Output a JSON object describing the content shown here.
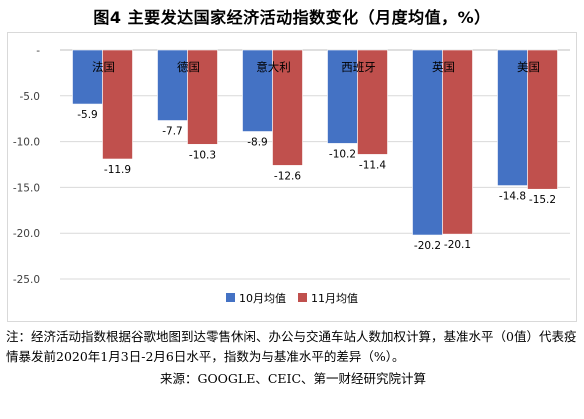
{
  "title": "图4 主要发达国家经济活动指数变化（月度均值，%）",
  "chart_data": {
    "type": "bar",
    "title": "图4 主要发达国家经济活动指数变化（月度均值，%）",
    "categories": [
      "法国",
      "德国",
      "意大利",
      "西班牙",
      "英国",
      "美国"
    ],
    "series": [
      {
        "name": "10月均值",
        "color": "#4472c4",
        "values": [
          -5.9,
          -7.7,
          -8.9,
          -10.2,
          -20.2,
          -14.8
        ]
      },
      {
        "name": "11月均值",
        "color": "#c0504d",
        "values": [
          -11.9,
          -10.3,
          -12.6,
          -11.4,
          -20.1,
          -15.2
        ]
      }
    ],
    "ylim": [
      -25,
      0
    ],
    "yticks": [
      0,
      -5,
      -10,
      -15,
      -20,
      -25
    ],
    "ytick_labels": [
      "-",
      "-5.0",
      "-10.0",
      "-15.0",
      "-20.0",
      "-25.0"
    ],
    "value_labels": [
      [
        "-5.9",
        "-7.7",
        "-8.9",
        "-10.2",
        "-20.2",
        "-14.8"
      ],
      [
        "-11.9",
        "-10.3",
        "-12.6",
        "-11.4",
        "-20.1",
        "-15.2"
      ]
    ],
    "grid": true,
    "legend_placement": "bottom-right",
    "xlabel": "",
    "ylabel": ""
  },
  "note": "注：经济活动指数根据谷歌地图到达零售休闲、办公与交通车站人数加权计算，基准水平（0值）代表疫情暴发前2020年1月3日-2月6日水平，指数为与基准水平的差异（%）。",
  "source": "来源：GOOGLE、CEIC、第一财经研究院计算"
}
